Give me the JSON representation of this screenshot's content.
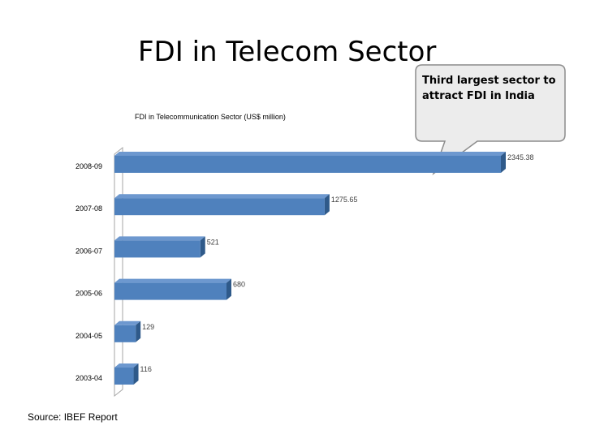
{
  "slide": {
    "title": "FDI in Telecom Sector",
    "source": "Source: IBEF Report",
    "callout": "Third largest sector to attract FDI in India"
  },
  "colors": {
    "bar_front": "#4f81bd",
    "bar_top": "#6d98cf",
    "bar_side": "#2f5a8a",
    "callout_fill": "#ececec",
    "callout_stroke": "#8c8c8c"
  },
  "chart_data": {
    "type": "bar",
    "orientation": "horizontal",
    "title": "FDI in Telecommunication Sector  (US$ million)",
    "categories": [
      "2008-09",
      "2007-08",
      "2006-07",
      "2005-06",
      "2004-05",
      "2003-04"
    ],
    "values": [
      2345.38,
      1275.65,
      521,
      680,
      129,
      116
    ],
    "value_labels": [
      "2345.38",
      "1275.65",
      "521",
      "680",
      "129",
      "116"
    ],
    "xlim": [
      0,
      2345.38
    ],
    "grid": false,
    "legend": "none"
  }
}
